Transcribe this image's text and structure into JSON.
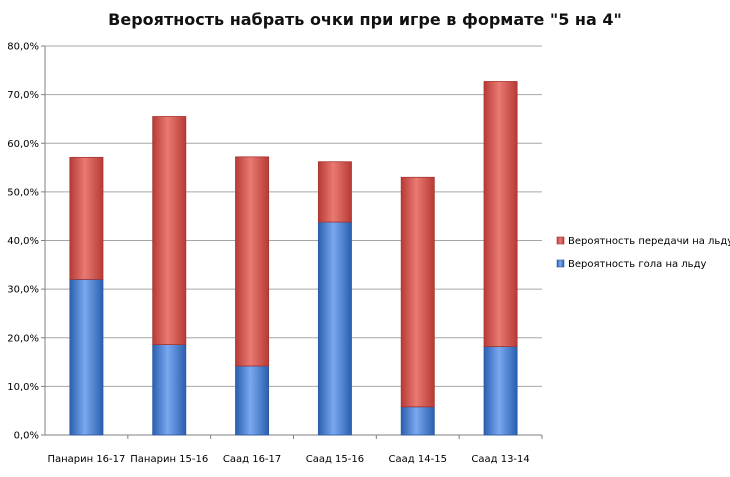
{
  "chart_data": {
    "type": "bar",
    "stacked": true,
    "title": "Вероятность набрать очки при игре в формате \"5 на 4\"",
    "categories": [
      "Панарин 16-17",
      "Панарин 15-16",
      "Саад 16-17",
      "Саад 15-16",
      "Саад 14-15",
      "Саад 13-14"
    ],
    "series": [
      {
        "name": "Вероятность гола на льду",
        "color": "#4a7fd4",
        "values": [
          32.0,
          18.6,
          14.2,
          43.8,
          5.8,
          18.2
        ]
      },
      {
        "name": "Вероятность передачи на льду",
        "color": "#d94a4a",
        "values": [
          25.1,
          46.9,
          43.0,
          12.4,
          47.2,
          54.5
        ]
      }
    ],
    "ylim": [
      0,
      80
    ],
    "yticks": [
      "0,0%",
      "10,0%",
      "20,0%",
      "30,0%",
      "40,0%",
      "50,0%",
      "60,0%",
      "70,0%",
      "80,0%"
    ],
    "grid": true,
    "legend_position": "right"
  }
}
